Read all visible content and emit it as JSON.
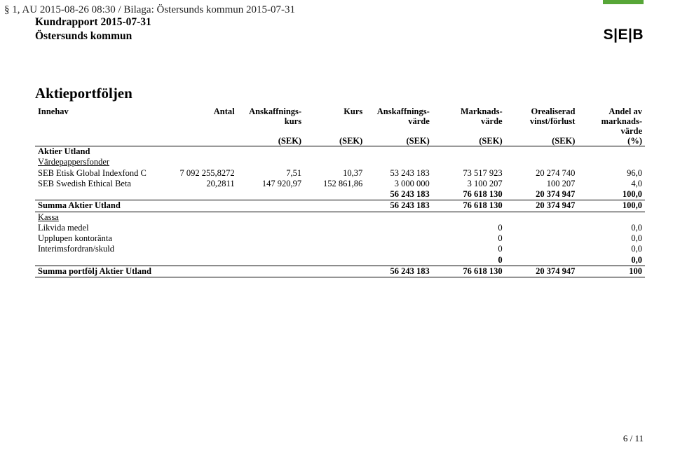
{
  "meta": {
    "line": "§ 1, AU 2015-08-26 08:30 / Bilaga: Östersunds kommun 2015-07-31",
    "report_title": "Kundrapport 2015-07-31",
    "client": "Östersunds kommun",
    "logo_text": "S|E|B",
    "page_num": "6 / 11"
  },
  "section": {
    "title": "Aktieportföljen"
  },
  "columns": {
    "name": {
      "h1": "Innehav",
      "h2": "",
      "unit": ""
    },
    "antal": {
      "h1": "Antal",
      "h2": "",
      "unit": ""
    },
    "akurs": {
      "h1": "Anskaffnings-",
      "h2": "kurs",
      "unit": "(SEK)"
    },
    "kurs": {
      "h1": "Kurs",
      "h2": "",
      "unit": "(SEK)"
    },
    "avarde": {
      "h1": "Anskaffnings-",
      "h2": "värde",
      "unit": "(SEK)"
    },
    "mvarde": {
      "h1": "Marknads-",
      "h2": "värde",
      "unit": "(SEK)"
    },
    "oreal": {
      "h1": "Orealiserad",
      "h2": "vinst/förlust",
      "unit": "(SEK)"
    },
    "andel": {
      "h1": "Andel av",
      "h2": "marknads-",
      "h3": "värde",
      "unit": "(%)"
    }
  },
  "group": {
    "title": "Aktier Utland",
    "subcat": "Värdepappersfonder"
  },
  "rows": [
    {
      "name": "SEB Etisk Global Indexfond C",
      "antal": "7 092 255,8272",
      "akurs": "7,51",
      "kurs": "10,37",
      "avarde": "53 243 183",
      "mvarde": "73 517 923",
      "oreal": "20 274 740",
      "andel": "96,0"
    },
    {
      "name": "SEB Swedish Ethical Beta",
      "antal": "20,2811",
      "akurs": "147 920,97",
      "kurs": "152 861,86",
      "avarde": "3 000 000",
      "mvarde": "3 100 207",
      "oreal": "100 207",
      "andel": "4,0"
    }
  ],
  "subtotal": {
    "avarde": "56 243 183",
    "mvarde": "76 618 130",
    "oreal": "20 374 947",
    "andel": "100,0"
  },
  "summa_utland": {
    "label": "Summa Aktier Utland",
    "avarde": "56 243 183",
    "mvarde": "76 618 130",
    "oreal": "20 374 947",
    "andel": "100,0"
  },
  "kassa": {
    "title": "Kassa",
    "rows": [
      {
        "name": "Likvida medel",
        "mvarde": "0",
        "andel": "0,0"
      },
      {
        "name": "Upplupen kontoränta",
        "mvarde": "0",
        "andel": "0,0"
      },
      {
        "name": "Interimsfordran/skuld",
        "mvarde": "0",
        "andel": "0,0"
      }
    ],
    "sum": {
      "mvarde": "0",
      "andel": "0,0"
    }
  },
  "portfolio_sum": {
    "label": "Summa portfölj Aktier Utland",
    "avarde": "56 243 183",
    "mvarde": "76 618 130",
    "oreal": "20 374 947",
    "andel": "100"
  }
}
